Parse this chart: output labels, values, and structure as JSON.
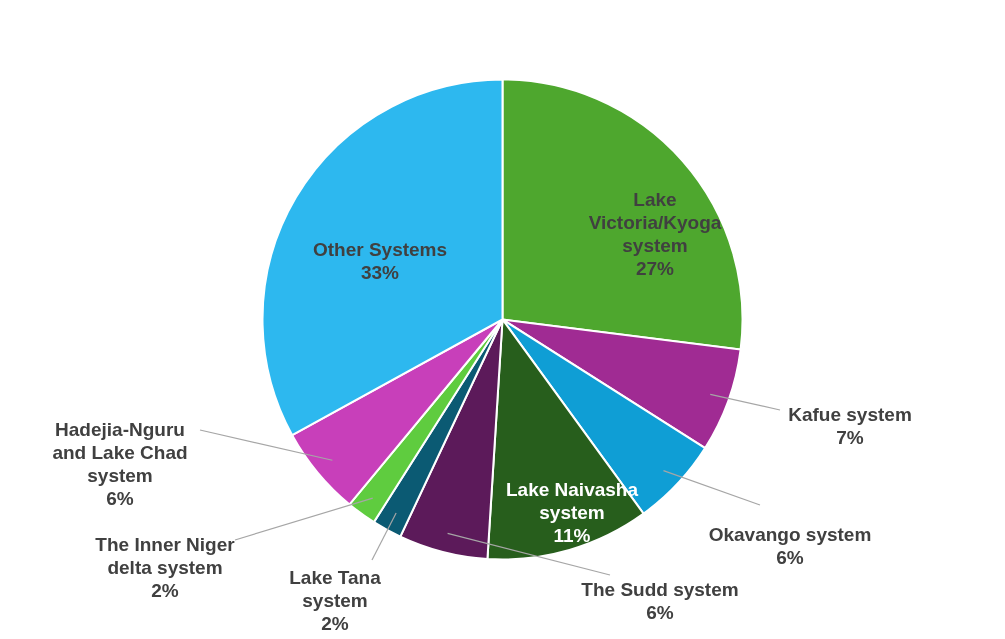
{
  "chart_data": {
    "type": "pie",
    "categories": [
      "Lake Victoria/Kyoga system",
      "Kafue system",
      "Okavango system",
      "Lake Naivasha system",
      "The Sudd system",
      "Lake Tana system",
      "The Inner Niger delta system",
      "Hadejia-Nguru and Lake Chad system",
      "Other Systems"
    ],
    "values": [
      27,
      7,
      6,
      11,
      6,
      2,
      2,
      6,
      33
    ],
    "value_labels": [
      "27%",
      "7%",
      "6%",
      "11%",
      "6%",
      "2%",
      "2%",
      "6%",
      "33%"
    ],
    "colors": [
      "#4ea72e",
      "#a02b93",
      "#0f9ed5",
      "#275e1c",
      "#5c1a5a",
      "#0b5a73",
      "#5fcc3f",
      "#c83fba",
      "#2db8ef"
    ]
  }
}
